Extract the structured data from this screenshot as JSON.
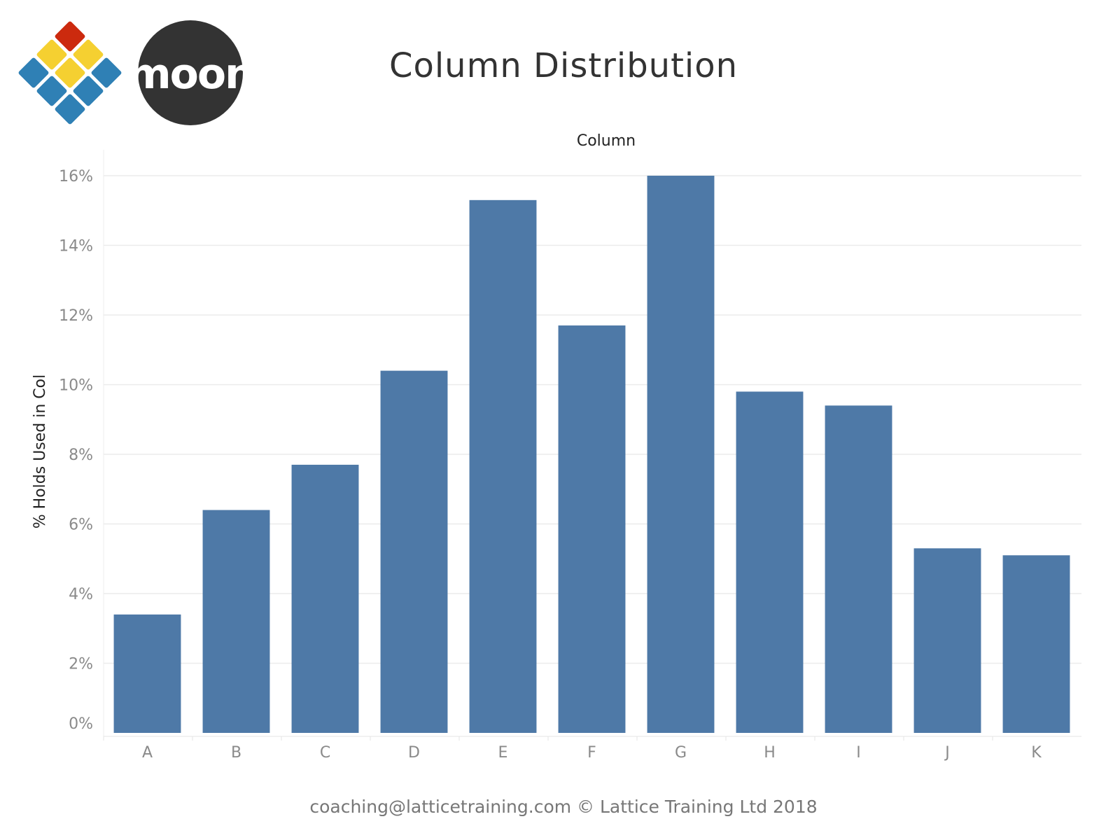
{
  "header": {
    "moon_logo_text": "moon"
  },
  "footer": {
    "credit": "coaching@latticetraining.com © Lattice Training Ltd 2018"
  },
  "colors": {
    "bar": "#4e79a7",
    "grid": "#ebebeb",
    "tick_text": "#8a8a8a",
    "title_text": "#333333",
    "logo_red": "#cc2a0e",
    "logo_yellow": "#f5d031",
    "logo_blue": "#2f80b5",
    "moon_bg": "#333333"
  },
  "chart_data": {
    "type": "bar",
    "title": "Column Distribution",
    "xlabel": "Column",
    "ylabel": "% Holds Used in Col",
    "categories": [
      "A",
      "B",
      "C",
      "D",
      "E",
      "F",
      "G",
      "H",
      "I",
      "J",
      "K"
    ],
    "values": [
      3.4,
      6.4,
      7.7,
      10.4,
      15.3,
      11.7,
      16.0,
      9.8,
      9.4,
      5.3,
      5.1
    ],
    "ylim": [
      0,
      16
    ],
    "yticks": [
      0,
      2,
      4,
      6,
      8,
      10,
      12,
      14,
      16
    ],
    "ytick_labels": [
      "0%",
      "2%",
      "4%",
      "6%",
      "8%",
      "10%",
      "12%",
      "14%",
      "16%"
    ],
    "grid": true,
    "legend": "none"
  }
}
